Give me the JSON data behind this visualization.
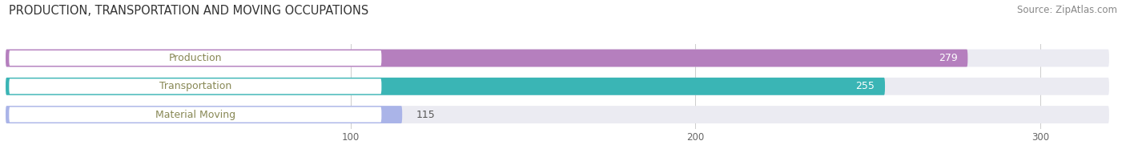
{
  "title": "PRODUCTION, TRANSPORTATION AND MOVING OCCUPATIONS",
  "source": "Source: ZipAtlas.com",
  "categories": [
    "Production",
    "Transportation",
    "Material Moving"
  ],
  "values": [
    279,
    255,
    115
  ],
  "bar_colors": [
    "#b57fbe",
    "#3ab5b5",
    "#aab4e8"
  ],
  "bar_bg_color": "#ebebf2",
  "label_bg_color": "#ffffff",
  "value_labels": [
    "279",
    "255",
    "115"
  ],
  "xlim": [
    0,
    320
  ],
  "xticks": [
    100,
    200,
    300
  ],
  "title_fontsize": 10.5,
  "source_fontsize": 8.5,
  "bar_label_fontsize": 9,
  "val_label_fontsize": 9,
  "bar_height": 0.62,
  "figsize": [
    14.06,
    1.96
  ],
  "dpi": 100,
  "label_text_color": "#888855",
  "val_inside_color": "#ffffff",
  "val_outside_color": "#555555"
}
